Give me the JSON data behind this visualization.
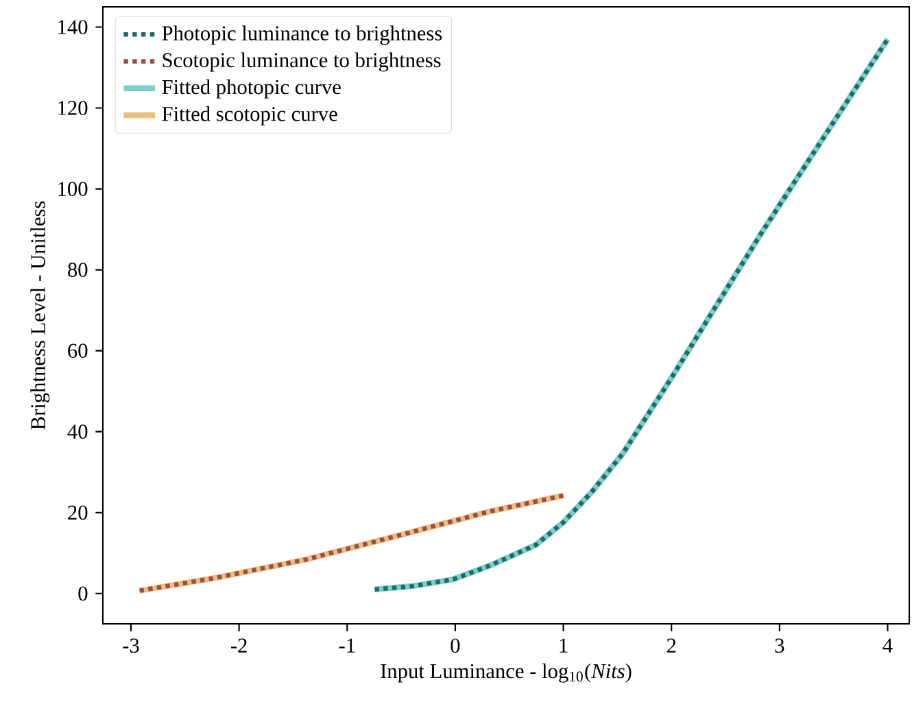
{
  "chart_data": {
    "type": "line",
    "xlabel": "Input Luminance - log$_{10}$(*Nits*)",
    "ylabel": "Brightness Level - Unitless",
    "xlim": [
      -3.26,
      4.2
    ],
    "ylim": [
      -7.5,
      145
    ],
    "xticks": [
      -3,
      -2,
      -1,
      0,
      1,
      2,
      3,
      4
    ],
    "yticks": [
      0,
      20,
      40,
      60,
      80,
      100,
      120,
      140
    ],
    "grid": false,
    "legend": "top left",
    "marker": "none",
    "series": [
      {
        "name": "Photopic luminance to brightness",
        "color": "#1d6b68",
        "line_style": "dotted",
        "x": [
          -0.745,
          -0.4,
          -0.02,
          0.32,
          0.745,
          1.0,
          1.26,
          1.55,
          2.0,
          2.83,
          3.0,
          4.0
        ],
        "values": [
          1.0,
          1.8,
          3.5,
          6.9,
          12,
          17.6,
          25,
          34.6,
          53.3,
          89,
          96,
          137
        ]
      },
      {
        "name": "Scotopic luminance to brightness",
        "color": "#a04a4a",
        "line_style": "dotted",
        "x": [
          -2.92,
          -2.23,
          -1.38,
          -0.53,
          0.32,
          1.0
        ],
        "values": [
          0.7,
          3.8,
          8.4,
          14.3,
          20.3,
          24.2
        ]
      },
      {
        "name": "Fitted photopic curve",
        "color": "#7dcdc9",
        "line_style": "solid",
        "x": [
          -0.745,
          -0.4,
          -0.02,
          0.32,
          0.745,
          1.0,
          1.26,
          1.55,
          2.0,
          2.83,
          3.0,
          4.0
        ],
        "values": [
          1.0,
          1.8,
          3.5,
          6.9,
          12,
          17.6,
          25,
          34.6,
          53.3,
          89,
          96,
          137
        ]
      },
      {
        "name": "Fitted scotopic curve",
        "color": "#e8c27d",
        "line_style": "solid",
        "x": [
          -2.92,
          -2.23,
          -1.38,
          -0.53,
          0.32,
          1.0
        ],
        "values": [
          0.7,
          3.8,
          8.4,
          14.3,
          20.3,
          24.2
        ]
      }
    ]
  }
}
